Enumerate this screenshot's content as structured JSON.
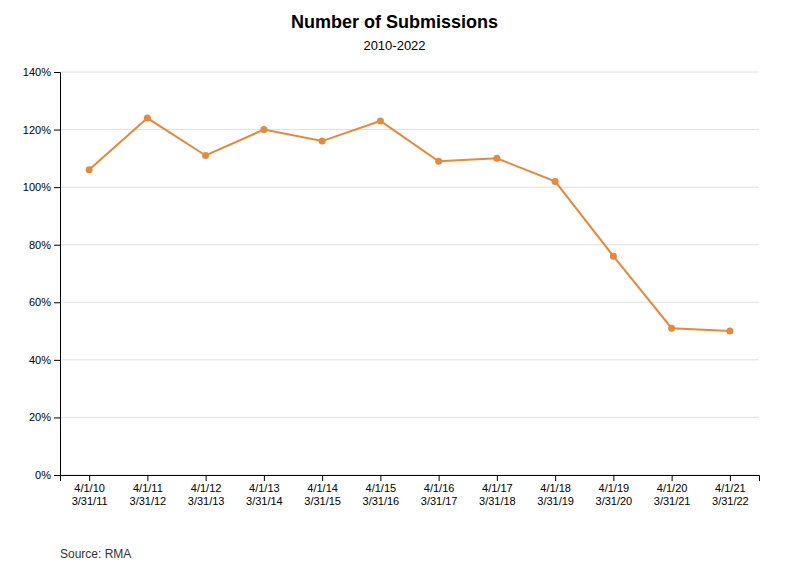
{
  "chart_data": {
    "type": "line",
    "title": "Number of Submissions",
    "subtitle": "2010-2022",
    "annotations": [
      "Source: RMA"
    ],
    "categories": [
      "4/1/10\n3/31/11",
      "4/1/11\n3/31/12",
      "4/1/12\n3/31/13",
      "4/1/13\n3/31/14",
      "4/1/14\n3/31/15",
      "4/1/15\n3/31/16",
      "4/1/16\n3/31/17",
      "4/1/17\n3/31/18",
      "4/1/18\n3/31/19",
      "4/1/19\n3/31/20",
      "4/1/20\n3/31/21",
      "4/1/21\n3/31/22"
    ],
    "values": [
      1.06,
      1.24,
      1.11,
      1.2,
      1.16,
      1.23,
      1.09,
      1.1,
      1.02,
      0.76,
      0.51,
      0.5
    ],
    "color": "#E8883A",
    "marker": "circle",
    "ylim": [
      0,
      1.4
    ],
    "yticks": [
      {
        "value": 0,
        "label": "0%"
      },
      {
        "value": 0.2,
        "label": "20%"
      },
      {
        "value": 0.4,
        "label": "40%"
      },
      {
        "value": 0.6,
        "label": "60%"
      },
      {
        "value": 0.8,
        "label": "80%"
      },
      {
        "value": 1.0,
        "label": "100%"
      },
      {
        "value": 1.2,
        "label": "120%"
      },
      {
        "value": 1.4,
        "label": "140%"
      }
    ],
    "grid": true
  }
}
